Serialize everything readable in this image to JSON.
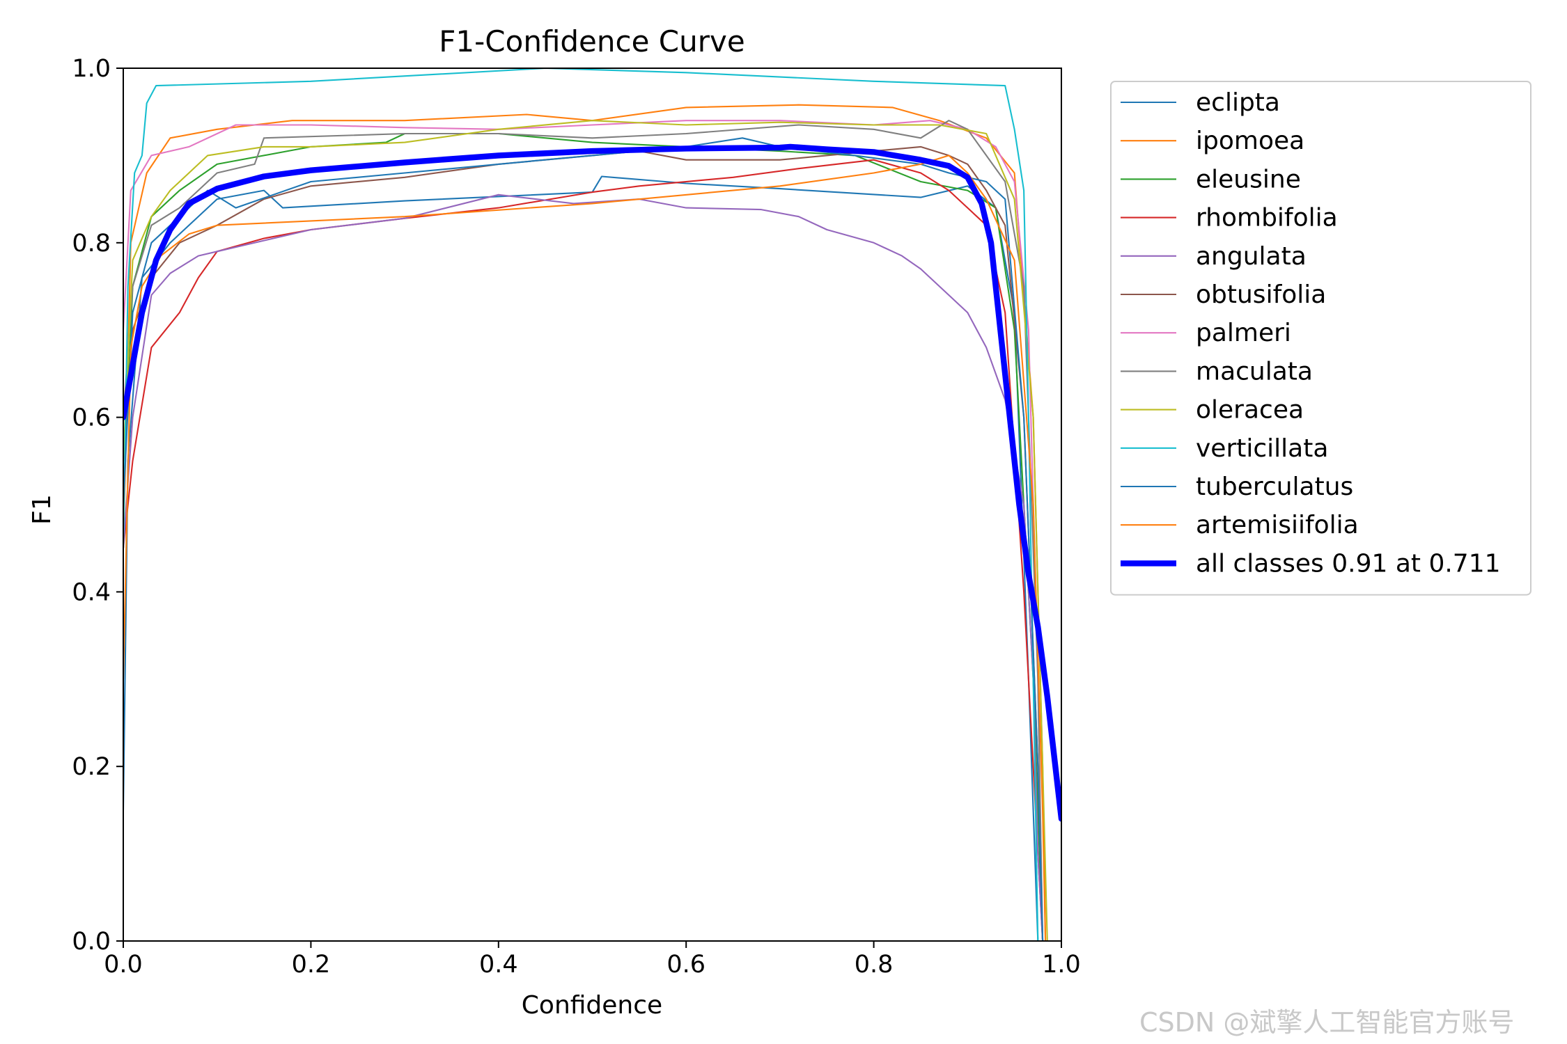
{
  "chart_data": {
    "type": "line",
    "title": "F1-Confidence Curve",
    "xlabel": "Confidence",
    "ylabel": "F1",
    "xlim": [
      0.0,
      1.0
    ],
    "ylim": [
      0.0,
      1.0
    ],
    "xticks": [
      "0.0",
      "0.2",
      "0.4",
      "0.6",
      "0.8",
      "1.0"
    ],
    "yticks": [
      "0.0",
      "0.2",
      "0.4",
      "0.6",
      "0.8",
      "1.0"
    ],
    "grid": false,
    "legend_position": "outside-right-top",
    "series": [
      {
        "name": "eclipta",
        "color": "#1f77b4",
        "width": 1.5,
        "points": [
          [
            0,
            0.15
          ],
          [
            0.005,
            0.55
          ],
          [
            0.02,
            0.76
          ],
          [
            0.05,
            0.8
          ],
          [
            0.1,
            0.85
          ],
          [
            0.15,
            0.86
          ],
          [
            0.17,
            0.84
          ],
          [
            0.3,
            0.848
          ],
          [
            0.5,
            0.858
          ],
          [
            0.51,
            0.876
          ],
          [
            0.6,
            0.868
          ],
          [
            0.7,
            0.862
          ],
          [
            0.85,
            0.852
          ],
          [
            0.9,
            0.865
          ],
          [
            0.93,
            0.84
          ],
          [
            0.95,
            0.72
          ],
          [
            0.965,
            0.3
          ],
          [
            0.975,
            0.0
          ]
        ]
      },
      {
        "name": "ipomoea",
        "color": "#ff7f0e",
        "width": 1.5,
        "points": [
          [
            0,
            0.45
          ],
          [
            0.008,
            0.8
          ],
          [
            0.025,
            0.88
          ],
          [
            0.05,
            0.92
          ],
          [
            0.1,
            0.93
          ],
          [
            0.18,
            0.94
          ],
          [
            0.3,
            0.94
          ],
          [
            0.43,
            0.947
          ],
          [
            0.5,
            0.94
          ],
          [
            0.6,
            0.955
          ],
          [
            0.72,
            0.958
          ],
          [
            0.82,
            0.955
          ],
          [
            0.87,
            0.94
          ],
          [
            0.92,
            0.92
          ],
          [
            0.95,
            0.88
          ],
          [
            0.97,
            0.6
          ],
          [
            0.98,
            0.2
          ],
          [
            0.983,
            0.0
          ]
        ]
      },
      {
        "name": "eleusine",
        "color": "#2ca02c",
        "width": 1.5,
        "points": [
          [
            0,
            0.5
          ],
          [
            0.01,
            0.75
          ],
          [
            0.03,
            0.83
          ],
          [
            0.06,
            0.86
          ],
          [
            0.1,
            0.89
          ],
          [
            0.2,
            0.91
          ],
          [
            0.28,
            0.915
          ],
          [
            0.3,
            0.925
          ],
          [
            0.4,
            0.925
          ],
          [
            0.5,
            0.915
          ],
          [
            0.6,
            0.91
          ],
          [
            0.7,
            0.905
          ],
          [
            0.78,
            0.9
          ],
          [
            0.85,
            0.87
          ],
          [
            0.9,
            0.86
          ],
          [
            0.93,
            0.84
          ],
          [
            0.95,
            0.7
          ],
          [
            0.97,
            0.3
          ],
          [
            0.98,
            0.0
          ]
        ]
      },
      {
        "name": "rhombifolia",
        "color": "#d62728",
        "width": 1.5,
        "points": [
          [
            0,
            0.45
          ],
          [
            0.01,
            0.55
          ],
          [
            0.03,
            0.68
          ],
          [
            0.06,
            0.72
          ],
          [
            0.08,
            0.76
          ],
          [
            0.1,
            0.79
          ],
          [
            0.15,
            0.805
          ],
          [
            0.2,
            0.815
          ],
          [
            0.3,
            0.828
          ],
          [
            0.4,
            0.84
          ],
          [
            0.5,
            0.858
          ],
          [
            0.55,
            0.865
          ],
          [
            0.65,
            0.875
          ],
          [
            0.72,
            0.885
          ],
          [
            0.8,
            0.895
          ],
          [
            0.85,
            0.88
          ],
          [
            0.88,
            0.86
          ],
          [
            0.9,
            0.84
          ],
          [
            0.92,
            0.82
          ],
          [
            0.94,
            0.72
          ],
          [
            0.96,
            0.4
          ],
          [
            0.975,
            0.1
          ],
          [
            0.98,
            0.0
          ]
        ]
      },
      {
        "name": "angulata",
        "color": "#9467bd",
        "width": 1.5,
        "points": [
          [
            0,
            0.45
          ],
          [
            0.01,
            0.6
          ],
          [
            0.03,
            0.74
          ],
          [
            0.05,
            0.765
          ],
          [
            0.08,
            0.785
          ],
          [
            0.1,
            0.79
          ],
          [
            0.2,
            0.815
          ],
          [
            0.3,
            0.828
          ],
          [
            0.4,
            0.855
          ],
          [
            0.48,
            0.845
          ],
          [
            0.55,
            0.85
          ],
          [
            0.6,
            0.84
          ],
          [
            0.68,
            0.838
          ],
          [
            0.72,
            0.83
          ],
          [
            0.75,
            0.815
          ],
          [
            0.8,
            0.8
          ],
          [
            0.83,
            0.785
          ],
          [
            0.85,
            0.77
          ],
          [
            0.88,
            0.74
          ],
          [
            0.9,
            0.72
          ],
          [
            0.92,
            0.68
          ],
          [
            0.94,
            0.62
          ],
          [
            0.95,
            0.56
          ],
          [
            0.96,
            0.5
          ],
          [
            0.97,
            0.3
          ],
          [
            0.975,
            0.1
          ],
          [
            0.98,
            0.0
          ]
        ]
      },
      {
        "name": "obtusifolia",
        "color": "#8c564b",
        "width": 1.5,
        "points": [
          [
            0,
            0.55
          ],
          [
            0.01,
            0.7
          ],
          [
            0.03,
            0.76
          ],
          [
            0.06,
            0.8
          ],
          [
            0.1,
            0.82
          ],
          [
            0.15,
            0.85
          ],
          [
            0.2,
            0.865
          ],
          [
            0.3,
            0.875
          ],
          [
            0.4,
            0.89
          ],
          [
            0.5,
            0.9
          ],
          [
            0.55,
            0.905
          ],
          [
            0.6,
            0.895
          ],
          [
            0.7,
            0.895
          ],
          [
            0.8,
            0.905
          ],
          [
            0.85,
            0.91
          ],
          [
            0.88,
            0.9
          ],
          [
            0.9,
            0.89
          ],
          [
            0.92,
            0.86
          ],
          [
            0.94,
            0.82
          ],
          [
            0.96,
            0.6
          ],
          [
            0.975,
            0.2
          ],
          [
            0.98,
            0.0
          ]
        ]
      },
      {
        "name": "palmeri",
        "color": "#e377c2",
        "width": 1.5,
        "points": [
          [
            0,
            0.7
          ],
          [
            0.008,
            0.86
          ],
          [
            0.03,
            0.9
          ],
          [
            0.07,
            0.91
          ],
          [
            0.12,
            0.935
          ],
          [
            0.2,
            0.935
          ],
          [
            0.3,
            0.932
          ],
          [
            0.4,
            0.93
          ],
          [
            0.5,
            0.935
          ],
          [
            0.6,
            0.94
          ],
          [
            0.7,
            0.94
          ],
          [
            0.8,
            0.935
          ],
          [
            0.86,
            0.94
          ],
          [
            0.9,
            0.93
          ],
          [
            0.93,
            0.91
          ],
          [
            0.95,
            0.87
          ],
          [
            0.965,
            0.7
          ],
          [
            0.975,
            0.3
          ],
          [
            0.98,
            0.0
          ]
        ]
      },
      {
        "name": "maculata",
        "color": "#7f7f7f",
        "width": 1.5,
        "points": [
          [
            0,
            0.6
          ],
          [
            0.01,
            0.75
          ],
          [
            0.03,
            0.82
          ],
          [
            0.06,
            0.84
          ],
          [
            0.1,
            0.88
          ],
          [
            0.14,
            0.89
          ],
          [
            0.15,
            0.92
          ],
          [
            0.3,
            0.925
          ],
          [
            0.4,
            0.925
          ],
          [
            0.5,
            0.92
          ],
          [
            0.6,
            0.925
          ],
          [
            0.72,
            0.935
          ],
          [
            0.8,
            0.93
          ],
          [
            0.85,
            0.92
          ],
          [
            0.88,
            0.94
          ],
          [
            0.9,
            0.93
          ],
          [
            0.94,
            0.87
          ],
          [
            0.96,
            0.75
          ],
          [
            0.975,
            0.3
          ],
          [
            0.98,
            0.0
          ]
        ]
      },
      {
        "name": "oleracea",
        "color": "#bcbd22",
        "width": 1.5,
        "points": [
          [
            0,
            0.55
          ],
          [
            0.01,
            0.78
          ],
          [
            0.03,
            0.83
          ],
          [
            0.05,
            0.86
          ],
          [
            0.08,
            0.89
          ],
          [
            0.09,
            0.9
          ],
          [
            0.15,
            0.91
          ],
          [
            0.2,
            0.91
          ],
          [
            0.3,
            0.915
          ],
          [
            0.4,
            0.93
          ],
          [
            0.5,
            0.94
          ],
          [
            0.6,
            0.935
          ],
          [
            0.7,
            0.938
          ],
          [
            0.8,
            0.935
          ],
          [
            0.87,
            0.935
          ],
          [
            0.92,
            0.925
          ],
          [
            0.95,
            0.85
          ],
          [
            0.97,
            0.6
          ],
          [
            0.98,
            0.2
          ],
          [
            0.985,
            0.0
          ]
        ]
      },
      {
        "name": "verticillata",
        "color": "#17becf",
        "width": 1.5,
        "points": [
          [
            0,
            0.45
          ],
          [
            0.005,
            0.75
          ],
          [
            0.012,
            0.88
          ],
          [
            0.02,
            0.9
          ],
          [
            0.025,
            0.96
          ],
          [
            0.035,
            0.98
          ],
          [
            0.2,
            0.985
          ],
          [
            0.45,
            1.0
          ],
          [
            0.6,
            0.995
          ],
          [
            0.8,
            0.985
          ],
          [
            0.94,
            0.98
          ],
          [
            0.95,
            0.93
          ],
          [
            0.96,
            0.86
          ],
          [
            0.965,
            0.6
          ],
          [
            0.97,
            0.3
          ],
          [
            0.975,
            0.0
          ]
        ]
      },
      {
        "name": "tuberculatus",
        "color": "#1f77b4",
        "width": 1.5,
        "points": [
          [
            0,
            0.5
          ],
          [
            0.01,
            0.72
          ],
          [
            0.03,
            0.8
          ],
          [
            0.06,
            0.83
          ],
          [
            0.09,
            0.86
          ],
          [
            0.12,
            0.84
          ],
          [
            0.2,
            0.87
          ],
          [
            0.3,
            0.88
          ],
          [
            0.4,
            0.89
          ],
          [
            0.5,
            0.9
          ],
          [
            0.6,
            0.91
          ],
          [
            0.66,
            0.92
          ],
          [
            0.7,
            0.91
          ],
          [
            0.78,
            0.9
          ],
          [
            0.85,
            0.89
          ],
          [
            0.88,
            0.88
          ],
          [
            0.92,
            0.87
          ],
          [
            0.94,
            0.85
          ],
          [
            0.96,
            0.6
          ],
          [
            0.975,
            0.2
          ],
          [
            0.98,
            0.0
          ]
        ]
      },
      {
        "name": "artemisiifolia",
        "color": "#ff7f0e",
        "width": 1.5,
        "points": [
          [
            0,
            0.3
          ],
          [
            0.008,
            0.68
          ],
          [
            0.02,
            0.75
          ],
          [
            0.04,
            0.785
          ],
          [
            0.07,
            0.81
          ],
          [
            0.1,
            0.82
          ],
          [
            0.3,
            0.83
          ],
          [
            0.5,
            0.845
          ],
          [
            0.7,
            0.865
          ],
          [
            0.8,
            0.88
          ],
          [
            0.85,
            0.89
          ],
          [
            0.88,
            0.9
          ],
          [
            0.9,
            0.88
          ],
          [
            0.92,
            0.85
          ],
          [
            0.95,
            0.78
          ],
          [
            0.97,
            0.5
          ],
          [
            0.98,
            0.15
          ],
          [
            0.983,
            0.0
          ]
        ]
      },
      {
        "name": "all classes 0.91 at 0.711",
        "color": "#0000ff",
        "width": 6,
        "points": [
          [
            0,
            0.6
          ],
          [
            0.01,
            0.66
          ],
          [
            0.02,
            0.72
          ],
          [
            0.035,
            0.78
          ],
          [
            0.05,
            0.815
          ],
          [
            0.07,
            0.845
          ],
          [
            0.1,
            0.862
          ],
          [
            0.15,
            0.876
          ],
          [
            0.2,
            0.883
          ],
          [
            0.3,
            0.892
          ],
          [
            0.4,
            0.9
          ],
          [
            0.5,
            0.905
          ],
          [
            0.6,
            0.908
          ],
          [
            0.7,
            0.909
          ],
          [
            0.711,
            0.91
          ],
          [
            0.75,
            0.907
          ],
          [
            0.8,
            0.904
          ],
          [
            0.85,
            0.895
          ],
          [
            0.88,
            0.888
          ],
          [
            0.9,
            0.875
          ],
          [
            0.915,
            0.845
          ],
          [
            0.925,
            0.8
          ],
          [
            0.935,
            0.7
          ],
          [
            0.945,
            0.6
          ],
          [
            0.955,
            0.5
          ],
          [
            0.965,
            0.42
          ],
          [
            0.975,
            0.36
          ],
          [
            0.985,
            0.28
          ],
          [
            1.0,
            0.14
          ]
        ]
      }
    ]
  },
  "watermark": "CSDN @斌擎人工智能官方账号"
}
